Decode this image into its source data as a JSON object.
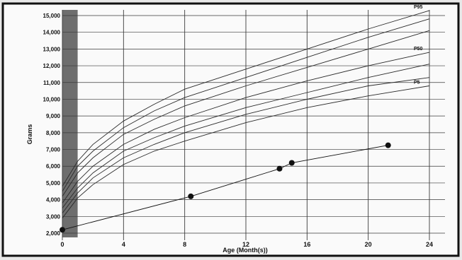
{
  "chart_data": {
    "type": "line",
    "xlabel": "Age (Month(s))",
    "ylabel": "Grams",
    "xlim": [
      0,
      24
    ],
    "ylim": [
      2000,
      15000
    ],
    "x_ticks": [
      0,
      4,
      8,
      12,
      16,
      20,
      24
    ],
    "x_tick_labels": [
      "0",
      "4",
      "8",
      "12",
      "16",
      "20",
      "24"
    ],
    "y_ticks": [
      2000,
      3000,
      4000,
      5000,
      6000,
      7000,
      8000,
      9000,
      10000,
      11000,
      12000,
      13000,
      14000,
      15000
    ],
    "y_tick_labels": [
      "2,000",
      "3,000",
      "4,000",
      "5,000",
      "6,000",
      "7,000",
      "8,000",
      "9,000",
      "10,000",
      "11,000",
      "12,000",
      "13,000",
      "14,000",
      "15,000"
    ],
    "grid": true,
    "shaded_band_x": [
      0,
      1
    ],
    "series": [
      {
        "name": "P95",
        "x": [
          0,
          1,
          2,
          4,
          6,
          8,
          12,
          16,
          20,
          24
        ],
        "y": [
          4800,
          6300,
          7300,
          8700,
          9700,
          10600,
          11800,
          13000,
          14200,
          15300
        ]
      },
      {
        "name": "",
        "x": [
          0,
          1,
          2,
          4,
          6,
          8,
          12,
          16,
          20,
          24
        ],
        "y": [
          4500,
          6000,
          6900,
          8300,
          9300,
          10100,
          11300,
          12500,
          13700,
          14800
        ]
      },
      {
        "name": "",
        "x": [
          0,
          1,
          2,
          4,
          6,
          8,
          12,
          16,
          20,
          24
        ],
        "y": [
          4200,
          5600,
          6500,
          7900,
          8800,
          9600,
          10800,
          11900,
          13000,
          14100
        ]
      },
      {
        "name": "P50",
        "x": [
          0,
          1,
          2,
          4,
          6,
          8,
          12,
          16,
          20,
          24
        ],
        "y": [
          3800,
          5100,
          6000,
          7300,
          8200,
          8900,
          10100,
          11100,
          12000,
          12800
        ]
      },
      {
        "name": "",
        "x": [
          0,
          1,
          2,
          4,
          6,
          8,
          12,
          16,
          20,
          24
        ],
        "y": [
          3500,
          4700,
          5600,
          6900,
          7700,
          8400,
          9500,
          10400,
          11300,
          12100
        ]
      },
      {
        "name": "",
        "x": [
          0,
          1,
          2,
          4,
          6,
          8,
          12,
          16,
          20,
          24
        ],
        "y": [
          3200,
          4400,
          5300,
          6500,
          7300,
          8000,
          9100,
          10000,
          10800,
          11300
        ]
      },
      {
        "name": "P5",
        "x": [
          0,
          1,
          2,
          4,
          6,
          8,
          12,
          16,
          20,
          24
        ],
        "y": [
          2900,
          4100,
          4900,
          6100,
          6900,
          7500,
          8600,
          9500,
          10200,
          10800
        ]
      },
      {
        "name": "",
        "type": "points",
        "x": [
          0,
          8.4,
          14.2,
          15,
          21.3
        ],
        "y": [
          2200,
          4200,
          5850,
          6200,
          7250
        ]
      }
    ],
    "colors": {
      "curves": "#2a2a2a",
      "grid": "#3a3a3a",
      "band": "#6e6e6e",
      "points": "#111111"
    }
  }
}
